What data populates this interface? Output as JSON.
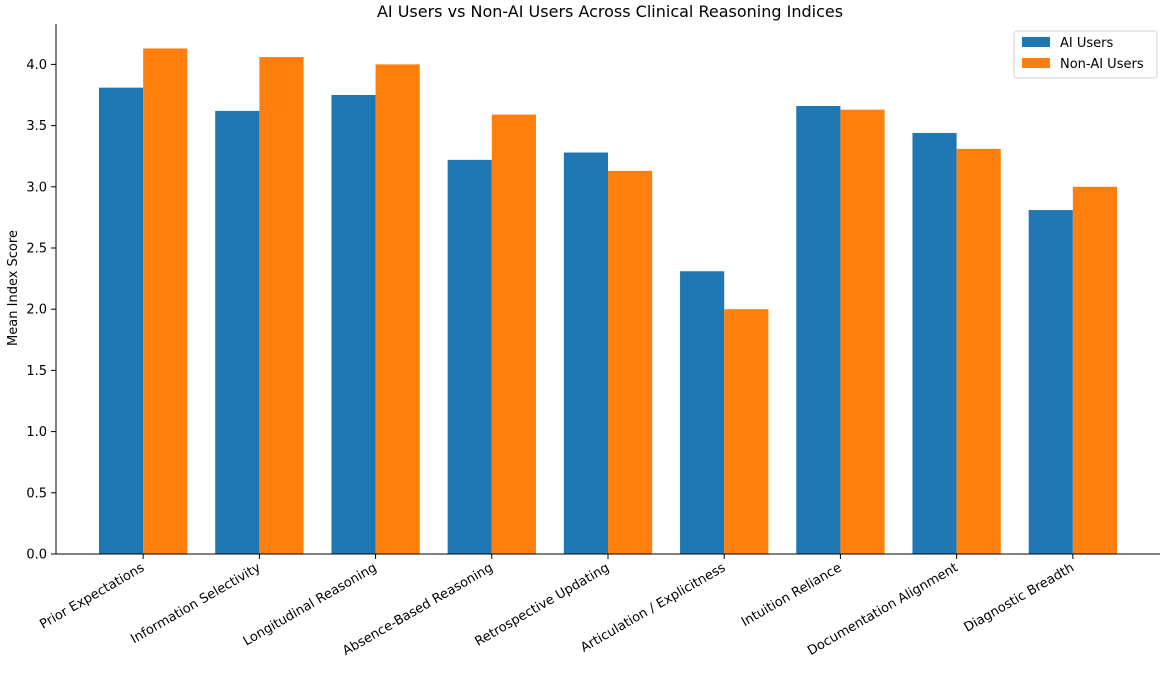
{
  "chart_data": {
    "type": "bar",
    "title": "AI Users vs Non-AI Users Across Clinical Reasoning Indices",
    "xlabel": "",
    "ylabel": "Mean Index Score",
    "ylim": [
      0,
      4.33
    ],
    "yticks": [
      0.0,
      0.5,
      1.0,
      1.5,
      2.0,
      2.5,
      3.0,
      3.5,
      4.0
    ],
    "ytick_labels": [
      "0.0",
      "0.5",
      "1.0",
      "1.5",
      "2.0",
      "2.5",
      "3.0",
      "3.5",
      "4.0"
    ],
    "categories": [
      "Prior Expectations",
      "Information Selectivity",
      "Longitudinal Reasoning",
      "Absence-Based Reasoning",
      "Retrospective Updating",
      "Articulation / Explicitness",
      "Intuition Reliance",
      "Documentation Alignment",
      "Diagnostic Breadth"
    ],
    "series": [
      {
        "name": "AI Users",
        "color": "#1f77b4",
        "values": [
          3.81,
          3.62,
          3.75,
          3.22,
          3.28,
          2.31,
          3.66,
          3.44,
          2.81
        ]
      },
      {
        "name": "Non-AI Users",
        "color": "#ff7f0e",
        "values": [
          4.13,
          4.06,
          4.0,
          3.59,
          3.13,
          2.0,
          3.63,
          3.31,
          3.0
        ]
      }
    ],
    "grid": false,
    "legend_position": "top-right"
  }
}
